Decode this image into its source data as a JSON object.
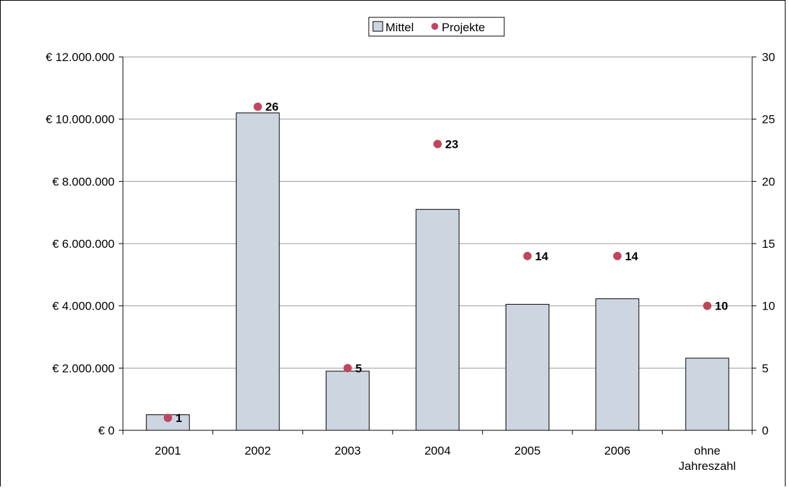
{
  "chart_data": {
    "type": "bar",
    "categories": [
      "2001",
      [
        "2002"
      ],
      "2003",
      "2004",
      "2005",
      "2006",
      [
        "ohne",
        "Jahreszahl"
      ]
    ],
    "series": [
      {
        "name": "Mittel",
        "type": "bar",
        "axis": "left",
        "values": [
          500000,
          10200000,
          1900000,
          7100000,
          4050000,
          4230000,
          2320000
        ]
      },
      {
        "name": "Projekte",
        "type": "scatter",
        "axis": "right",
        "values": [
          1,
          26,
          5,
          23,
          14,
          14,
          10
        ],
        "labels": [
          "1",
          "26",
          "5",
          "23",
          "14",
          "14",
          "10"
        ]
      }
    ],
    "y_left": {
      "lim": [
        0,
        12000000
      ],
      "ticks": [
        0,
        2000000,
        4000000,
        6000000,
        8000000,
        10000000,
        12000000
      ],
      "tick_labels": [
        "€ 0",
        "€ 2.000.000",
        "€ 4.000.000",
        "€ 6.000.000",
        "€ 8.000.000",
        "€ 10.000.000",
        "€ 12.000.000"
      ]
    },
    "y_right": {
      "lim": [
        0,
        30
      ],
      "ticks": [
        0,
        5,
        10,
        15,
        20,
        25,
        30
      ],
      "tick_labels": [
        "0",
        "5",
        "10",
        "15",
        "20",
        "25",
        "30"
      ]
    },
    "grid": true,
    "legend": "top-center",
    "colors": {
      "bar_fill": "#ccd5e0",
      "bar_stroke": "#000000",
      "point": "#c0455f",
      "grid": "#999999"
    }
  }
}
